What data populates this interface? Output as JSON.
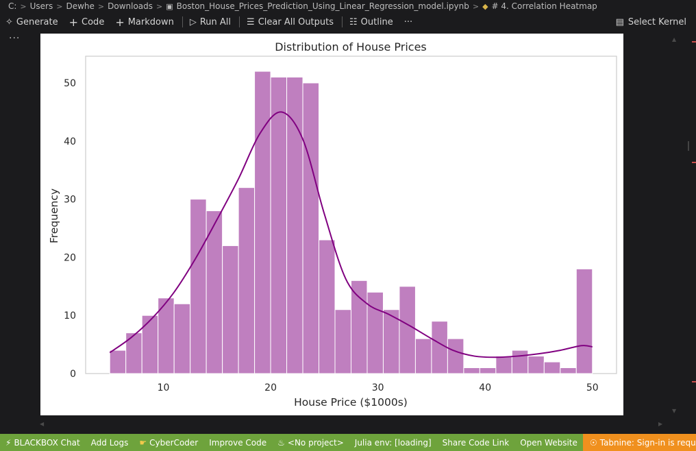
{
  "breadcrumb": {
    "items": [
      "C:",
      "Users",
      "Dewhe",
      "Downloads",
      "Boston_House_Prices_Prediction_Using_Linear_Regression_model.ipynb",
      "# 4. Correlation Heatmap"
    ]
  },
  "toolbar": {
    "generate": "Generate",
    "code": "Code",
    "markdown": "Markdown",
    "run_all": "Run All",
    "clear_all_outputs": "Clear All Outputs",
    "outline": "Outline",
    "more": "···",
    "select_kernel": "Select Kernel"
  },
  "cell_more": "···",
  "chart_data": {
    "type": "bar",
    "title": "Distribution of House Prices",
    "xlabel": "House Price ($1000s)",
    "ylabel": "Frequency",
    "xlim": [
      2.75,
      52.25
    ],
    "ylim": [
      0,
      54.6
    ],
    "xticks": [
      10,
      20,
      30,
      40,
      50
    ],
    "yticks": [
      0,
      10,
      20,
      30,
      40,
      50
    ],
    "bin_start": 5,
    "bin_width": 1.5,
    "counts": [
      4,
      7,
      10,
      13,
      12,
      30,
      28,
      22,
      32,
      52,
      51,
      51,
      50,
      23,
      11,
      16,
      14,
      11,
      15,
      6,
      9,
      6,
      1,
      1,
      3,
      4,
      3,
      2,
      1,
      18
    ],
    "kde": {
      "x": [
        5,
        7,
        9,
        11,
        13,
        15,
        17,
        19,
        21,
        23,
        25,
        27,
        29,
        31,
        33,
        35,
        37,
        39,
        41,
        43,
        45,
        47,
        49,
        50
      ],
      "y": [
        3.6,
        6.2,
        9.6,
        14,
        19.8,
        26.5,
        33.5,
        41.3,
        45,
        40.3,
        27.5,
        16.3,
        12,
        10.2,
        8.2,
        6,
        4,
        3,
        2.8,
        3,
        3.4,
        4,
        4.8,
        4.6
      ]
    },
    "bar_color": "#bf7fbf",
    "kde_color": "#800080",
    "grid": false
  },
  "statusbar": {
    "blackbox_chat": "BLACKBOX Chat",
    "add_logs": "Add Logs",
    "cybercoder": "CyberCoder",
    "improve_code": "Improve Code",
    "no_project": "<No project>",
    "julia_env": "Julia env: [loading]",
    "share_code_link": "Share Code Link",
    "open_website": "Open Website",
    "tabnine": "Tabnine: Sign-in is required"
  }
}
